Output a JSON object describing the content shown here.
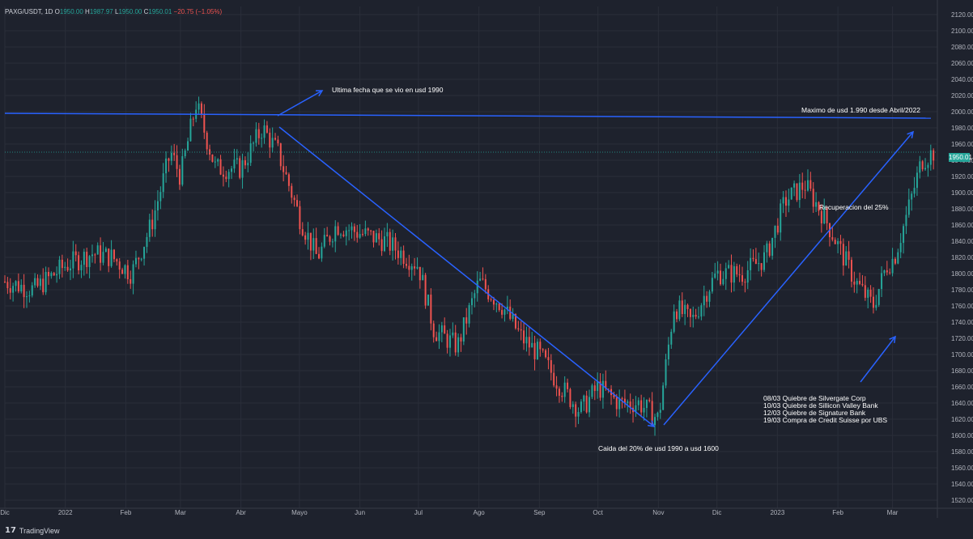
{
  "header": {
    "symbol": "PAXG/USDT, 1D",
    "open_label": "O",
    "open": "1950.00",
    "high_label": "H",
    "high": "1987.97",
    "low_label": "L",
    "low": "1950.00",
    "close_label": "C",
    "close": "1950.01",
    "change": "−20.75 (−1.05%)"
  },
  "brand": {
    "logo": "17",
    "name": "TradingView"
  },
  "last_price_tag": "1950.01",
  "annotations": {
    "ultima": "Ultima fecha que se vio en usd 1990",
    "maximo": "Maximo de usd 1.990 desde Abril/2022",
    "recuperacion": "Recuperacion del 25%",
    "caida": "Caida del 20% de usd 1990 a usd 1600",
    "events": [
      "08/03 Quiebre de Silvergate Corp",
      "10/03 Quiebre de Sillicon Valley Bank",
      "12/03 Quiebre de Signature Bank",
      "19/03 Compra de Credit Suisse por UBS"
    ]
  },
  "colors": {
    "up": "#26a69a",
    "down": "#ef5350",
    "trend": "#2962ff",
    "background": "#1e222d"
  },
  "chart_data": {
    "type": "candlestick",
    "y_ticks": [
      1520,
      1540,
      1560,
      1580,
      1600,
      1620,
      1640,
      1660,
      1680,
      1700,
      1720,
      1740,
      1760,
      1780,
      1800,
      1820,
      1840,
      1860,
      1880,
      1900,
      1920,
      1940,
      1960,
      1980,
      2000,
      2020,
      2040,
      2060,
      2080,
      2100,
      2120
    ],
    "ylim": [
      1510,
      2130
    ],
    "x_labels": [
      "Dic",
      "2022",
      "Feb",
      "Mar",
      "Abr",
      "Mayo",
      "Jun",
      "Jul",
      "Ago",
      "Sep",
      "Oct",
      "Nov",
      "Dic",
      "2023",
      "Feb",
      "Mar"
    ],
    "x_label_days": [
      0,
      31,
      62,
      90,
      121,
      151,
      182,
      212,
      243,
      274,
      304,
      335,
      365,
      396,
      427,
      455
    ],
    "xlim_days": [
      0,
      478
    ],
    "close_series": [
      {
        "day": 0,
        "close": 1790
      },
      {
        "day": 15,
        "close": 1780
      },
      {
        "day": 31,
        "close": 1810
      },
      {
        "day": 45,
        "close": 1825
      },
      {
        "day": 55,
        "close": 1820
      },
      {
        "day": 65,
        "close": 1800
      },
      {
        "day": 75,
        "close": 1860
      },
      {
        "day": 85,
        "close": 1950
      },
      {
        "day": 90,
        "close": 1920
      },
      {
        "day": 98,
        "close": 2010
      },
      {
        "day": 108,
        "close": 1930
      },
      {
        "day": 121,
        "close": 1930
      },
      {
        "day": 132,
        "close": 1980
      },
      {
        "day": 140,
        "close": 1950
      },
      {
        "day": 151,
        "close": 1870
      },
      {
        "day": 160,
        "close": 1820
      },
      {
        "day": 170,
        "close": 1860
      },
      {
        "day": 182,
        "close": 1850
      },
      {
        "day": 195,
        "close": 1840
      },
      {
        "day": 212,
        "close": 1810
      },
      {
        "day": 220,
        "close": 1730
      },
      {
        "day": 232,
        "close": 1710
      },
      {
        "day": 243,
        "close": 1790
      },
      {
        "day": 255,
        "close": 1760
      },
      {
        "day": 265,
        "close": 1720
      },
      {
        "day": 274,
        "close": 1700
      },
      {
        "day": 285,
        "close": 1660
      },
      {
        "day": 295,
        "close": 1630
      },
      {
        "day": 304,
        "close": 1660
      },
      {
        "day": 315,
        "close": 1640
      },
      {
        "day": 325,
        "close": 1640
      },
      {
        "day": 335,
        "close": 1620
      },
      {
        "day": 343,
        "close": 1760
      },
      {
        "day": 352,
        "close": 1740
      },
      {
        "day": 360,
        "close": 1780
      },
      {
        "day": 365,
        "close": 1800
      },
      {
        "day": 378,
        "close": 1800
      },
      {
        "day": 390,
        "close": 1820
      },
      {
        "day": 400,
        "close": 1890
      },
      {
        "day": 410,
        "close": 1910
      },
      {
        "day": 420,
        "close": 1870
      },
      {
        "day": 428,
        "close": 1830
      },
      {
        "day": 436,
        "close": 1790
      },
      {
        "day": 445,
        "close": 1760
      },
      {
        "day": 452,
        "close": 1810
      },
      {
        "day": 456,
        "close": 1820
      },
      {
        "day": 462,
        "close": 1870
      },
      {
        "day": 470,
        "close": 1940
      },
      {
        "day": 476,
        "close": 1950
      }
    ],
    "horizontal_line": 1995,
    "last_price": 1950.01
  }
}
